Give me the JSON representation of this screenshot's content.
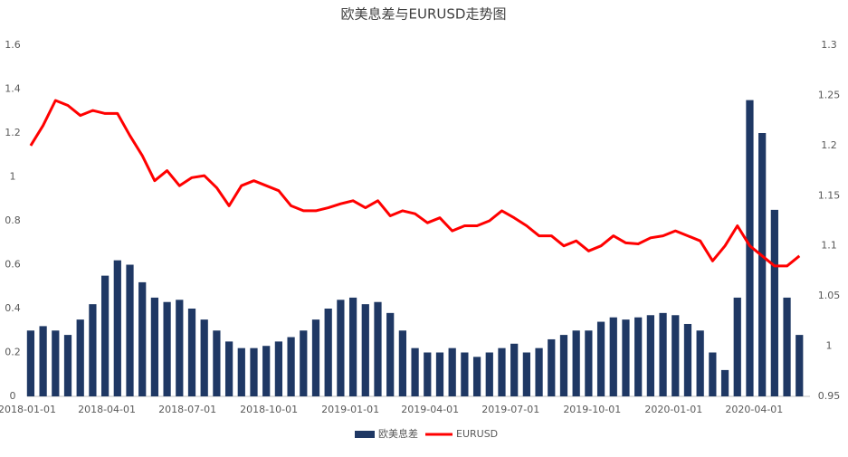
{
  "chart_data": {
    "type": "bar-line",
    "title": "欧美息差与EURUSD走势图",
    "x": [
      "2018-01-05",
      "2018-01-19",
      "2018-02-02",
      "2018-02-16",
      "2018-03-02",
      "2018-03-16",
      "2018-03-30",
      "2018-04-13",
      "2018-04-27",
      "2018-05-11",
      "2018-05-25",
      "2018-06-08",
      "2018-06-22",
      "2018-07-06",
      "2018-07-20",
      "2018-08-03",
      "2018-08-17",
      "2018-08-31",
      "2018-09-14",
      "2018-09-28",
      "2018-10-12",
      "2018-10-26",
      "2018-11-09",
      "2018-11-23",
      "2018-12-07",
      "2018-12-21",
      "2019-01-04",
      "2019-01-18",
      "2019-02-01",
      "2019-02-15",
      "2019-03-01",
      "2019-03-15",
      "2019-03-29",
      "2019-04-12",
      "2019-04-26",
      "2019-05-10",
      "2019-05-24",
      "2019-06-07",
      "2019-06-21",
      "2019-07-05",
      "2019-07-19",
      "2019-08-02",
      "2019-08-16",
      "2019-08-30",
      "2019-09-13",
      "2019-09-27",
      "2019-10-11",
      "2019-10-25",
      "2019-11-08",
      "2019-11-22",
      "2019-12-06",
      "2019-12-20",
      "2020-01-03",
      "2020-01-17",
      "2020-01-31",
      "2020-02-14",
      "2020-02-28",
      "2020-03-13",
      "2020-03-27",
      "2020-04-10",
      "2020-04-24",
      "2020-05-08",
      "2020-05-22"
    ],
    "series": [
      {
        "name": "欧美息差",
        "color": "#1f3864",
        "axis": "y",
        "values": [
          0.3,
          0.32,
          0.3,
          0.28,
          0.35,
          0.42,
          0.55,
          0.62,
          0.6,
          0.52,
          0.45,
          0.43,
          0.44,
          0.4,
          0.35,
          0.3,
          0.25,
          0.22,
          0.22,
          0.23,
          0.25,
          0.27,
          0.3,
          0.35,
          0.4,
          0.44,
          0.45,
          0.42,
          0.43,
          0.38,
          0.3,
          0.22,
          0.2,
          0.2,
          0.22,
          0.2,
          0.18,
          0.2,
          0.22,
          0.24,
          0.2,
          0.22,
          0.26,
          0.28,
          0.3,
          0.3,
          0.34,
          0.36,
          0.35,
          0.36,
          0.37,
          0.38,
          0.37,
          0.33,
          0.3,
          0.2,
          0.12,
          0.45,
          1.35,
          1.2,
          0.85,
          0.45,
          0.28
        ]
      },
      {
        "name": "EURUSD",
        "color": "#ff0000",
        "axis": "y2",
        "values": [
          1.2,
          1.22,
          1.245,
          1.24,
          1.23,
          1.235,
          1.232,
          1.232,
          1.21,
          1.19,
          1.165,
          1.175,
          1.16,
          1.168,
          1.17,
          1.158,
          1.14,
          1.16,
          1.165,
          1.16,
          1.155,
          1.14,
          1.135,
          1.135,
          1.138,
          1.142,
          1.145,
          1.138,
          1.145,
          1.13,
          1.135,
          1.132,
          1.123,
          1.128,
          1.115,
          1.12,
          1.12,
          1.125,
          1.135,
          1.128,
          1.12,
          1.11,
          1.11,
          1.1,
          1.105,
          1.095,
          1.1,
          1.11,
          1.103,
          1.102,
          1.108,
          1.11,
          1.115,
          1.11,
          1.105,
          1.085,
          1.1,
          1.12,
          1.1,
          1.09,
          1.08,
          1.08,
          1.09
        ]
      }
    ],
    "xlim": [
      "2018-01-01",
      "2020-06-03"
    ],
    "xticks": [
      "2018-01-01",
      "2018-04-01",
      "2018-07-01",
      "2018-10-01",
      "2019-01-01",
      "2019-04-01",
      "2019-07-01",
      "2019-10-01",
      "2020-01-01",
      "2020-04-01"
    ],
    "ylim": [
      0,
      1.6
    ],
    "yticks": [
      0,
      0.2,
      0.4,
      0.6,
      0.8,
      1,
      1.2,
      1.4,
      1.6
    ],
    "y2lim": [
      0.95,
      1.3
    ],
    "y2ticks": [
      0.95,
      1,
      1.05,
      1.1,
      1.15,
      1.2,
      1.25,
      1.3
    ],
    "legend": "bottom"
  }
}
